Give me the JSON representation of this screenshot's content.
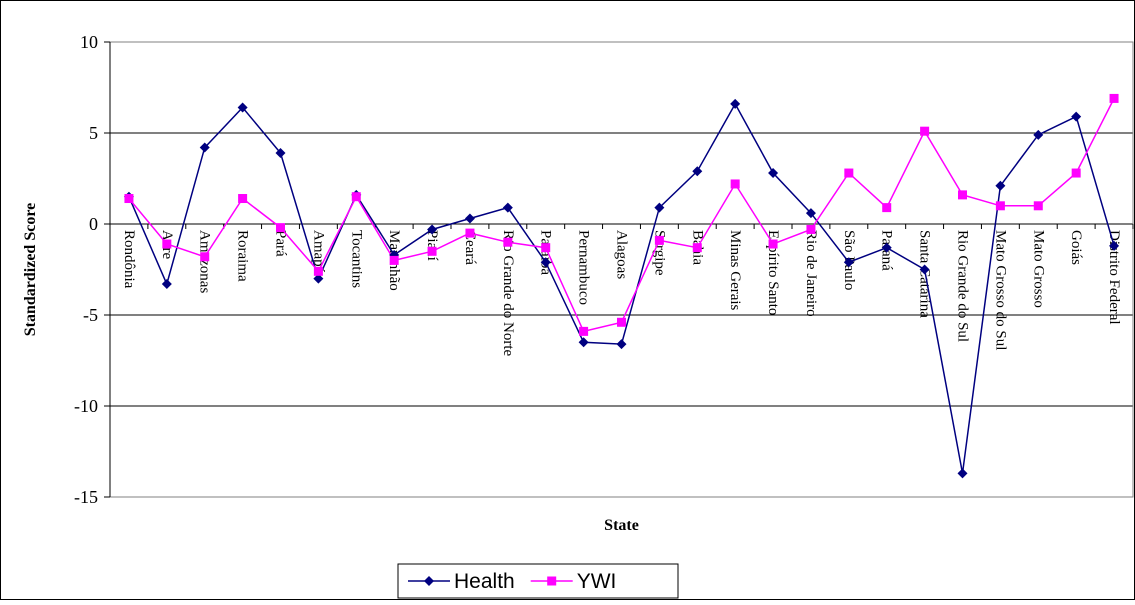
{
  "chart_data": {
    "type": "line",
    "xlabel": "State",
    "ylabel": "Standardized Score",
    "ylim": [
      -15,
      10
    ],
    "yticks": [
      10,
      5,
      0,
      -5,
      -10,
      -15
    ],
    "ytick_labels": [
      "10",
      "5",
      "0",
      "-5",
      "-10",
      "-15"
    ],
    "grid": true,
    "legend_position": "bottom-center",
    "categories": [
      "Rondônia",
      "Acre",
      "Amazonas",
      "Roraima",
      "Pará",
      "Amapá",
      "Tocantins",
      "Maranhão",
      "Piauí",
      "Ceará",
      "Rio Grande do Norte",
      "Paraíba",
      "Pernambuco",
      "Alagoas",
      "Sergipe",
      "Bahia",
      "Minas Gerais",
      "Espírito Santo",
      "Rio de Janeiro",
      "São Paulo",
      "Paraná",
      "Santa Catarina",
      "Rio Grande do Sul",
      "Mato Grosso do Sul",
      "Mato Grosso",
      "Goiás",
      "Distrito Federal"
    ],
    "series": [
      {
        "name": "Health",
        "color": "#000080",
        "marker": "diamond",
        "values": [
          1.5,
          -3.3,
          4.2,
          6.4,
          3.9,
          -3.0,
          1.6,
          -1.7,
          -0.3,
          0.3,
          0.9,
          -2.1,
          -6.5,
          -6.6,
          0.9,
          2.9,
          6.6,
          2.8,
          0.6,
          -2.1,
          -1.3,
          -2.5,
          -13.7,
          2.1,
          4.9,
          5.9,
          -1.2
        ]
      },
      {
        "name": "YWI",
        "color": "#FF00FF",
        "marker": "square",
        "values": [
          1.4,
          -1.1,
          -1.8,
          1.4,
          -0.2,
          -2.6,
          1.5,
          -2.0,
          -1.5,
          -0.5,
          -1.0,
          -1.3,
          -5.9,
          -5.4,
          -0.9,
          -1.3,
          2.2,
          -1.1,
          -0.3,
          2.8,
          0.9,
          5.1,
          1.6,
          1.0,
          1.0,
          2.8,
          6.9
        ]
      }
    ]
  }
}
